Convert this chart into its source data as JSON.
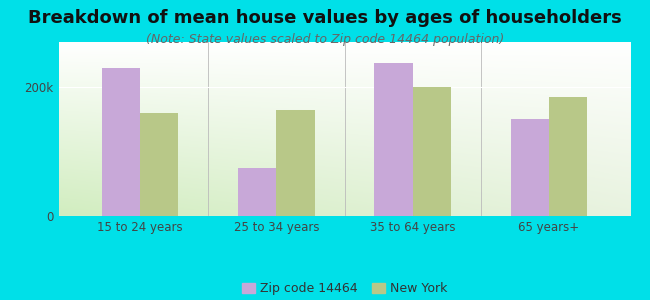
{
  "categories": [
    "15 to 24 years",
    "25 to 34 years",
    "35 to 64 years",
    "65 years+"
  ],
  "zip_values": [
    230000,
    75000,
    237000,
    150000
  ],
  "ny_values": [
    160000,
    165000,
    200000,
    185000
  ],
  "zip_color": "#c8a8d8",
  "ny_color": "#b8c888",
  "title": "Breakdown of mean house values by ages of householders",
  "subtitle": "(Note: State values scaled to Zip code 14464 population)",
  "ylabel_ticks": [
    "0",
    "200k"
  ],
  "ytick_vals": [
    0,
    200000
  ],
  "ylim": [
    0,
    270000
  ],
  "background_color": "#00e0e8",
  "legend_zip": "Zip code 14464",
  "legend_ny": "New York",
  "bar_width": 0.28,
  "title_fontsize": 13,
  "subtitle_fontsize": 9
}
